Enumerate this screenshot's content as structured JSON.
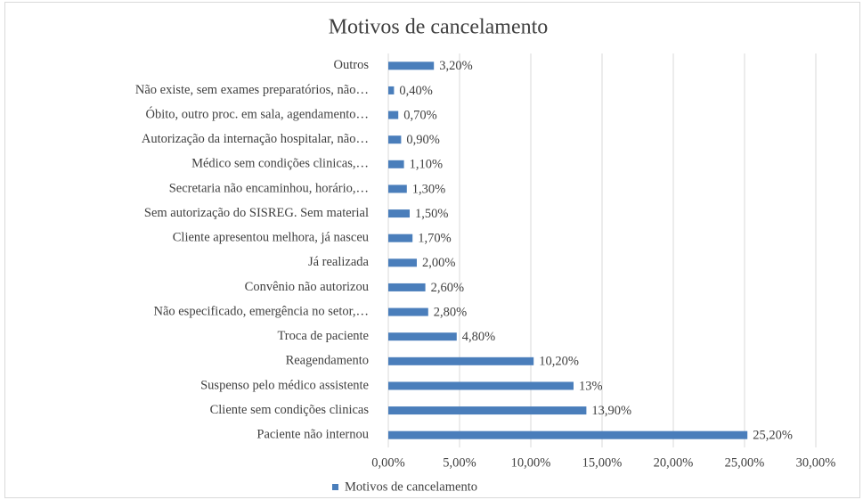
{
  "chart_data": {
    "type": "bar",
    "orientation": "horizontal",
    "title": "Motivos de cancelamento",
    "categories": [
      "Outros",
      "Não existe, sem exames preparatórios, não…",
      "Óbito, outro proc. em sala, agendamento…",
      "Autorização da internação hospitalar, não…",
      "Médico sem condições clinicas,…",
      "Secretaria não encaminhou, horário,…",
      "Sem autorização do SISREG. Sem material",
      "Cliente apresentou melhora, já nasceu",
      "Já realizada",
      "Convênio não autorizou",
      "Não especificado, emergência no setor,…",
      "Troca de paciente",
      "Reagendamento",
      "Suspenso pelo médico assistente",
      "Cliente sem condições clinicas",
      "Paciente não internou"
    ],
    "series": [
      {
        "name": "Motivos de cancelamento",
        "color": "#4a7ebb",
        "values": [
          3.2,
          0.4,
          0.7,
          0.9,
          1.1,
          1.3,
          1.5,
          1.7,
          2.0,
          2.6,
          2.8,
          4.8,
          10.2,
          13,
          13.9,
          25.2
        ],
        "value_labels": [
          "3,20%",
          "0,40%",
          "0,70%",
          "0,90%",
          "1,10%",
          "1,30%",
          "1,50%",
          "1,70%",
          "2,00%",
          "2,60%",
          "2,80%",
          "4,80%",
          "10,20%",
          "13%",
          "13,90%",
          "25,20%"
        ]
      }
    ],
    "xlim": [
      0,
      30
    ],
    "xticks": [
      {
        "value": 0,
        "label": "0,00%"
      },
      {
        "value": 5,
        "label": "5,00%"
      },
      {
        "value": 10,
        "label": "10,00%"
      },
      {
        "value": 15,
        "label": "15,00%"
      },
      {
        "value": 20,
        "label": "20,00%"
      },
      {
        "value": 25,
        "label": "25,00%"
      },
      {
        "value": 30,
        "label": "30,00%"
      }
    ],
    "grid": true,
    "legend": "bottom"
  }
}
